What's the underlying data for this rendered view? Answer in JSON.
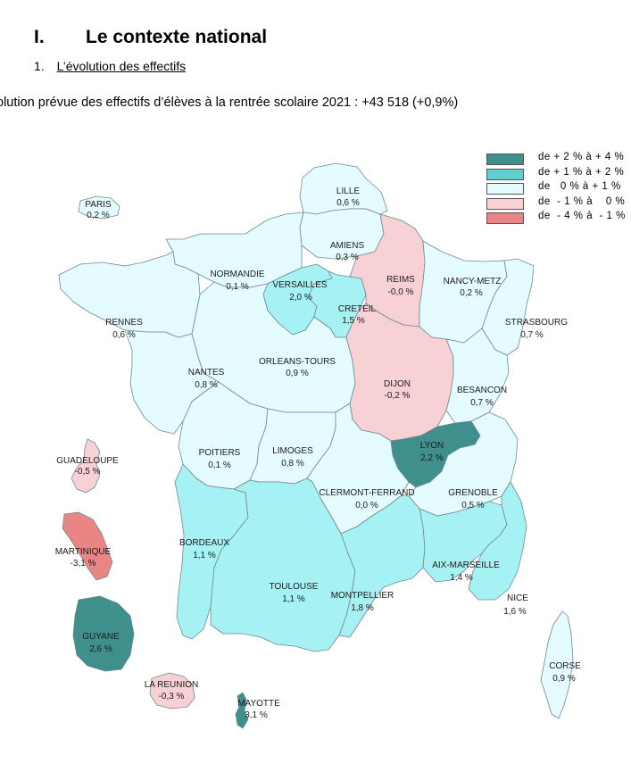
{
  "section": {
    "number": "I.",
    "title": "Le contexte national"
  },
  "subsection": {
    "number": "1.",
    "title": "L’évolution des effectifs"
  },
  "intro": "olution prévue des effectifs d’élèves à la rentrée scolaire 2021 : +43 518 (+0,9%)",
  "legend": [
    {
      "label": "de + 2 % à + 4 %",
      "color": "#3f8f8c"
    },
    {
      "label": "de + 1 % à + 2 %",
      "color": "#5fcfcf"
    },
    {
      "label": "de   0 % à + 1 %",
      "color": "#e4fbff"
    },
    {
      "label": "de  - 1 % à    0 %",
      "color": "#f7d1d4"
    },
    {
      "label": "de  - 4 % à  - 1 %",
      "color": "#e98585"
    }
  ],
  "regions": [
    {
      "name": "LILLE",
      "value": "0,6 %"
    },
    {
      "name": "AMIENS",
      "value": "0,3 %"
    },
    {
      "name": "NORMANDIE",
      "value": "0,1 %"
    },
    {
      "name": "VERSAILLES",
      "value": "2,0 %"
    },
    {
      "name": "CRETEIL",
      "value": "1,5 %"
    },
    {
      "name": "REIMS",
      "value": "-0,0 %"
    },
    {
      "name": "NANCY-METZ",
      "value": "0,2 %"
    },
    {
      "name": "STRASBOURG",
      "value": "0,7 %"
    },
    {
      "name": "RENNES",
      "value": "0,6 %"
    },
    {
      "name": "ORLEANS-TOURS",
      "value": "0,9 %"
    },
    {
      "name": "NANTES",
      "value": "0,8 %"
    },
    {
      "name": "DIJON",
      "value": "-0,2 %"
    },
    {
      "name": "BESANCON",
      "value": "0,7 %"
    },
    {
      "name": "POITIERS",
      "value": "0,1 %"
    },
    {
      "name": "LIMOGES",
      "value": "0,8 %"
    },
    {
      "name": "LYON",
      "value": "2,2 %"
    },
    {
      "name": "CLERMONT-FERRAND",
      "value": "0,0 %"
    },
    {
      "name": "GRENOBLE",
      "value": "0,5 %"
    },
    {
      "name": "BORDEAUX",
      "value": "1,1 %"
    },
    {
      "name": "TOULOUSE",
      "value": "1,1 %"
    },
    {
      "name": "MONTPELLIER",
      "value": "1,8 %"
    },
    {
      "name": "AIX-MARSEILLE",
      "value": "1,4 %"
    },
    {
      "name": "NICE",
      "value": "1,6 %"
    },
    {
      "name": "CORSE",
      "value": "0,9 %"
    },
    {
      "name": "PARIS",
      "value": "0,2 %"
    },
    {
      "name": "GUADELOUPE",
      "value": "-0,5 %"
    },
    {
      "name": "MARTINIQUE",
      "value": "-3,1 %"
    },
    {
      "name": "GUYANE",
      "value": "2,6 %"
    },
    {
      "name": "LA REUNION",
      "value": "-0,3 %"
    },
    {
      "name": "MAYOTTE",
      "value": "3,1 %"
    }
  ]
}
